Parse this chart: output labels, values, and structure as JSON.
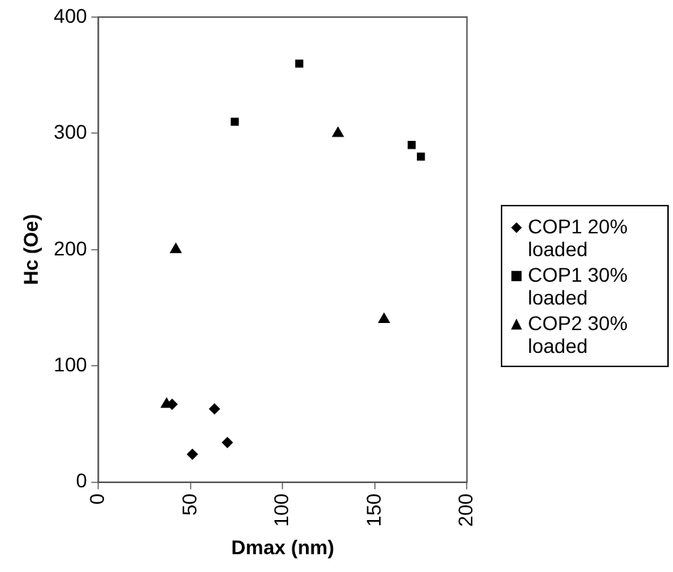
{
  "chart_data": {
    "type": "scatter",
    "xlabel": "Dmax (nm)",
    "ylabel": "Hc (Oe)",
    "xlim": [
      0,
      200
    ],
    "xticks": [
      0,
      50,
      100,
      150,
      200
    ],
    "ylim": [
      0,
      400
    ],
    "yticks": [
      0,
      100,
      200,
      300,
      400
    ],
    "grid": false,
    "legend": "right",
    "series": [
      {
        "name": "COP1 20% loaded",
        "color": "#000000",
        "marker": "diamond",
        "x": [
          51,
          70,
          63,
          40
        ],
        "values": [
          24,
          34,
          63,
          67
        ]
      },
      {
        "name": "COP1 30% loaded",
        "color": "#000000",
        "marker": "square",
        "x": [
          74,
          109,
          170,
          175
        ],
        "values": [
          310,
          360,
          290,
          280
        ]
      },
      {
        "name": "COP2 30% loaded",
        "color": "#000000",
        "marker": "triangle",
        "x": [
          37,
          42,
          130,
          155
        ],
        "values": [
          67,
          200,
          300,
          140
        ]
      }
    ]
  }
}
